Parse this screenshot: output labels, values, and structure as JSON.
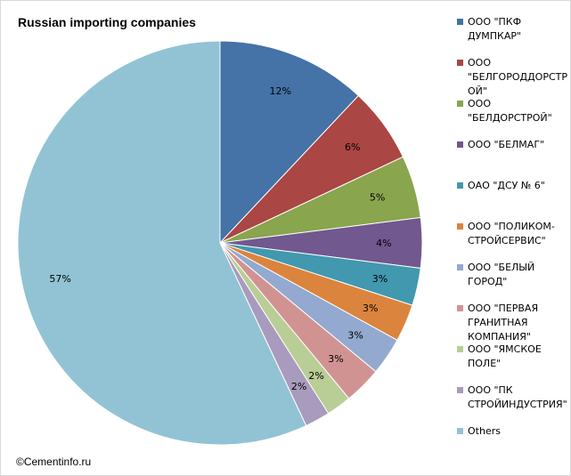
{
  "chart_data": {
    "type": "pie",
    "title": "Russian importing companies",
    "slices": [
      {
        "name": "ООО \"ПКФ ДУМПКАР\"",
        "value": 12,
        "label": "12%",
        "color": "#4572A7"
      },
      {
        "name": "ООО \"БЕЛГОРОДДОРСТРОЙ\"",
        "value": 6,
        "label": "6%",
        "color": "#AA4643"
      },
      {
        "name": "ООО \"БЕЛДОРСТРОЙ\"",
        "value": 5,
        "label": "5%",
        "color": "#89A54E"
      },
      {
        "name": "ООО \"БЕЛМАГ\"",
        "value": 4,
        "label": "4%",
        "color": "#71588F"
      },
      {
        "name": "ОАО \"ДСУ № 6\"",
        "value": 3,
        "label": "3%",
        "color": "#4198AF"
      },
      {
        "name": "ООО \"ПОЛИКОМ-СТРОЙСЕРВИС\"",
        "value": 3,
        "label": "3%",
        "color": "#DB843D"
      },
      {
        "name": "ООО \"БЕЛЫЙ ГОРОД\"",
        "value": 3,
        "label": "3%",
        "color": "#93A9CF"
      },
      {
        "name": "ООО \"ПЕРВАЯ ГРАНИТНАЯ КОМПАНИЯ\"",
        "value": 3,
        "label": "3%",
        "color": "#D19392"
      },
      {
        "name": "ООО \"ЯМСКОЕ ПОЛЕ\"",
        "value": 2,
        "label": "2%",
        "color": "#B9CD96"
      },
      {
        "name": "ООО \"ПК СТРОЙИНДУСТРИЯ\"",
        "value": 2,
        "label": "2%",
        "color": "#A99BBD"
      },
      {
        "name": "Others",
        "value": 57,
        "label": "57%",
        "color": "#92C3D4"
      }
    ],
    "legend_position": "right"
  },
  "legend_labels": [
    "ООО \"ПКФ\nДУМПКАР\"",
    "ООО\n\"БЕЛГОРОДДОРСТР\nОЙ\"",
    "ООО\n\"БЕЛДОРСТРОЙ\"",
    "ООО \"БЕЛМАГ\"",
    "ОАО \"ДСУ № 6\"",
    "ООО \"ПОЛИКОМ-\nСТРОЙСЕРВИС\"",
    "ООО \"БЕЛЫЙ\nГОРОД\"",
    "ООО \"ПЕРВАЯ\nГРАНИТНАЯ\nКОМПАНИЯ\"",
    "ООО \"ЯМСКОЕ\nПОЛЕ\"",
    "ООО \"ПК\nСТРОЙИНДУСТРИЯ\"",
    "Others"
  ],
  "copyright": "©Cementinfo.ru"
}
